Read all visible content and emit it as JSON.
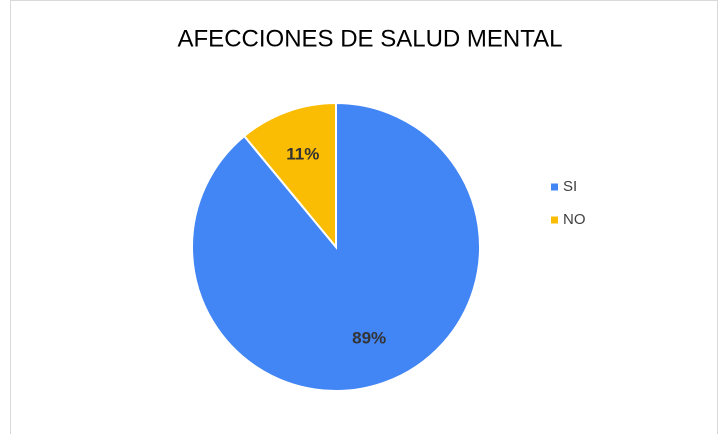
{
  "chart_data": {
    "type": "pie",
    "title": "AFECCIONES DE SALUD MENTAL",
    "categories": [
      "SI",
      "NO"
    ],
    "values": [
      89,
      11
    ],
    "value_labels": [
      "89%",
      "11%"
    ],
    "colors": [
      "#4285f4",
      "#fbbc04"
    ],
    "legend": "right"
  }
}
